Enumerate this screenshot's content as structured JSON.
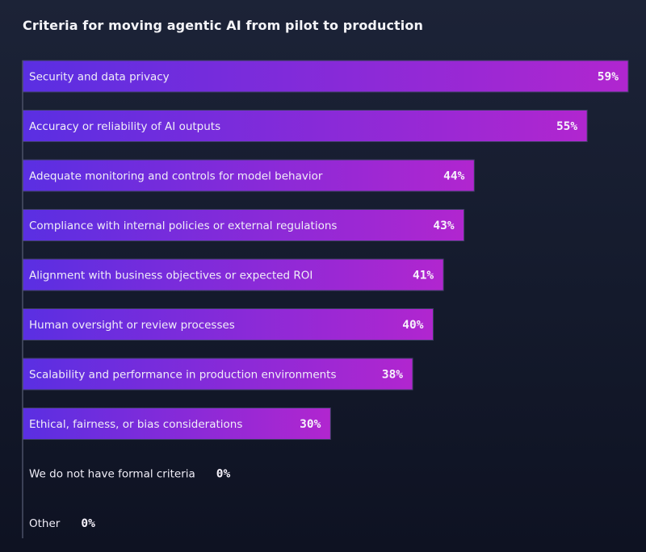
{
  "chart_data": {
    "type": "bar",
    "orientation": "horizontal",
    "title": "Criteria for moving agentic AI from pilot to production",
    "categories": [
      "Security and data privacy",
      "Accuracy or reliability of AI outputs",
      "Adequate monitoring and controls for model behavior",
      "Compliance with internal policies or external regulations",
      "Alignment with business objectives or expected ROI",
      "Human oversight or review processes",
      "Scalability and performance in production environments",
      "Ethical, fairness, or bias considerations",
      "We do not have formal criteria",
      "Other"
    ],
    "values": [
      59,
      55,
      44,
      43,
      41,
      40,
      38,
      30,
      0,
      0
    ],
    "value_labels": [
      "59%",
      "55%",
      "44%",
      "43%",
      "41%",
      "40%",
      "38%",
      "30%",
      "0%",
      "0%"
    ],
    "unit": "%",
    "xlim": [
      0,
      59
    ],
    "grid": false,
    "colors": {
      "bar_start": "#5a2fe2",
      "bar_end": "#b126cf",
      "background": "#161c2e",
      "axis": "#4a5066"
    }
  }
}
